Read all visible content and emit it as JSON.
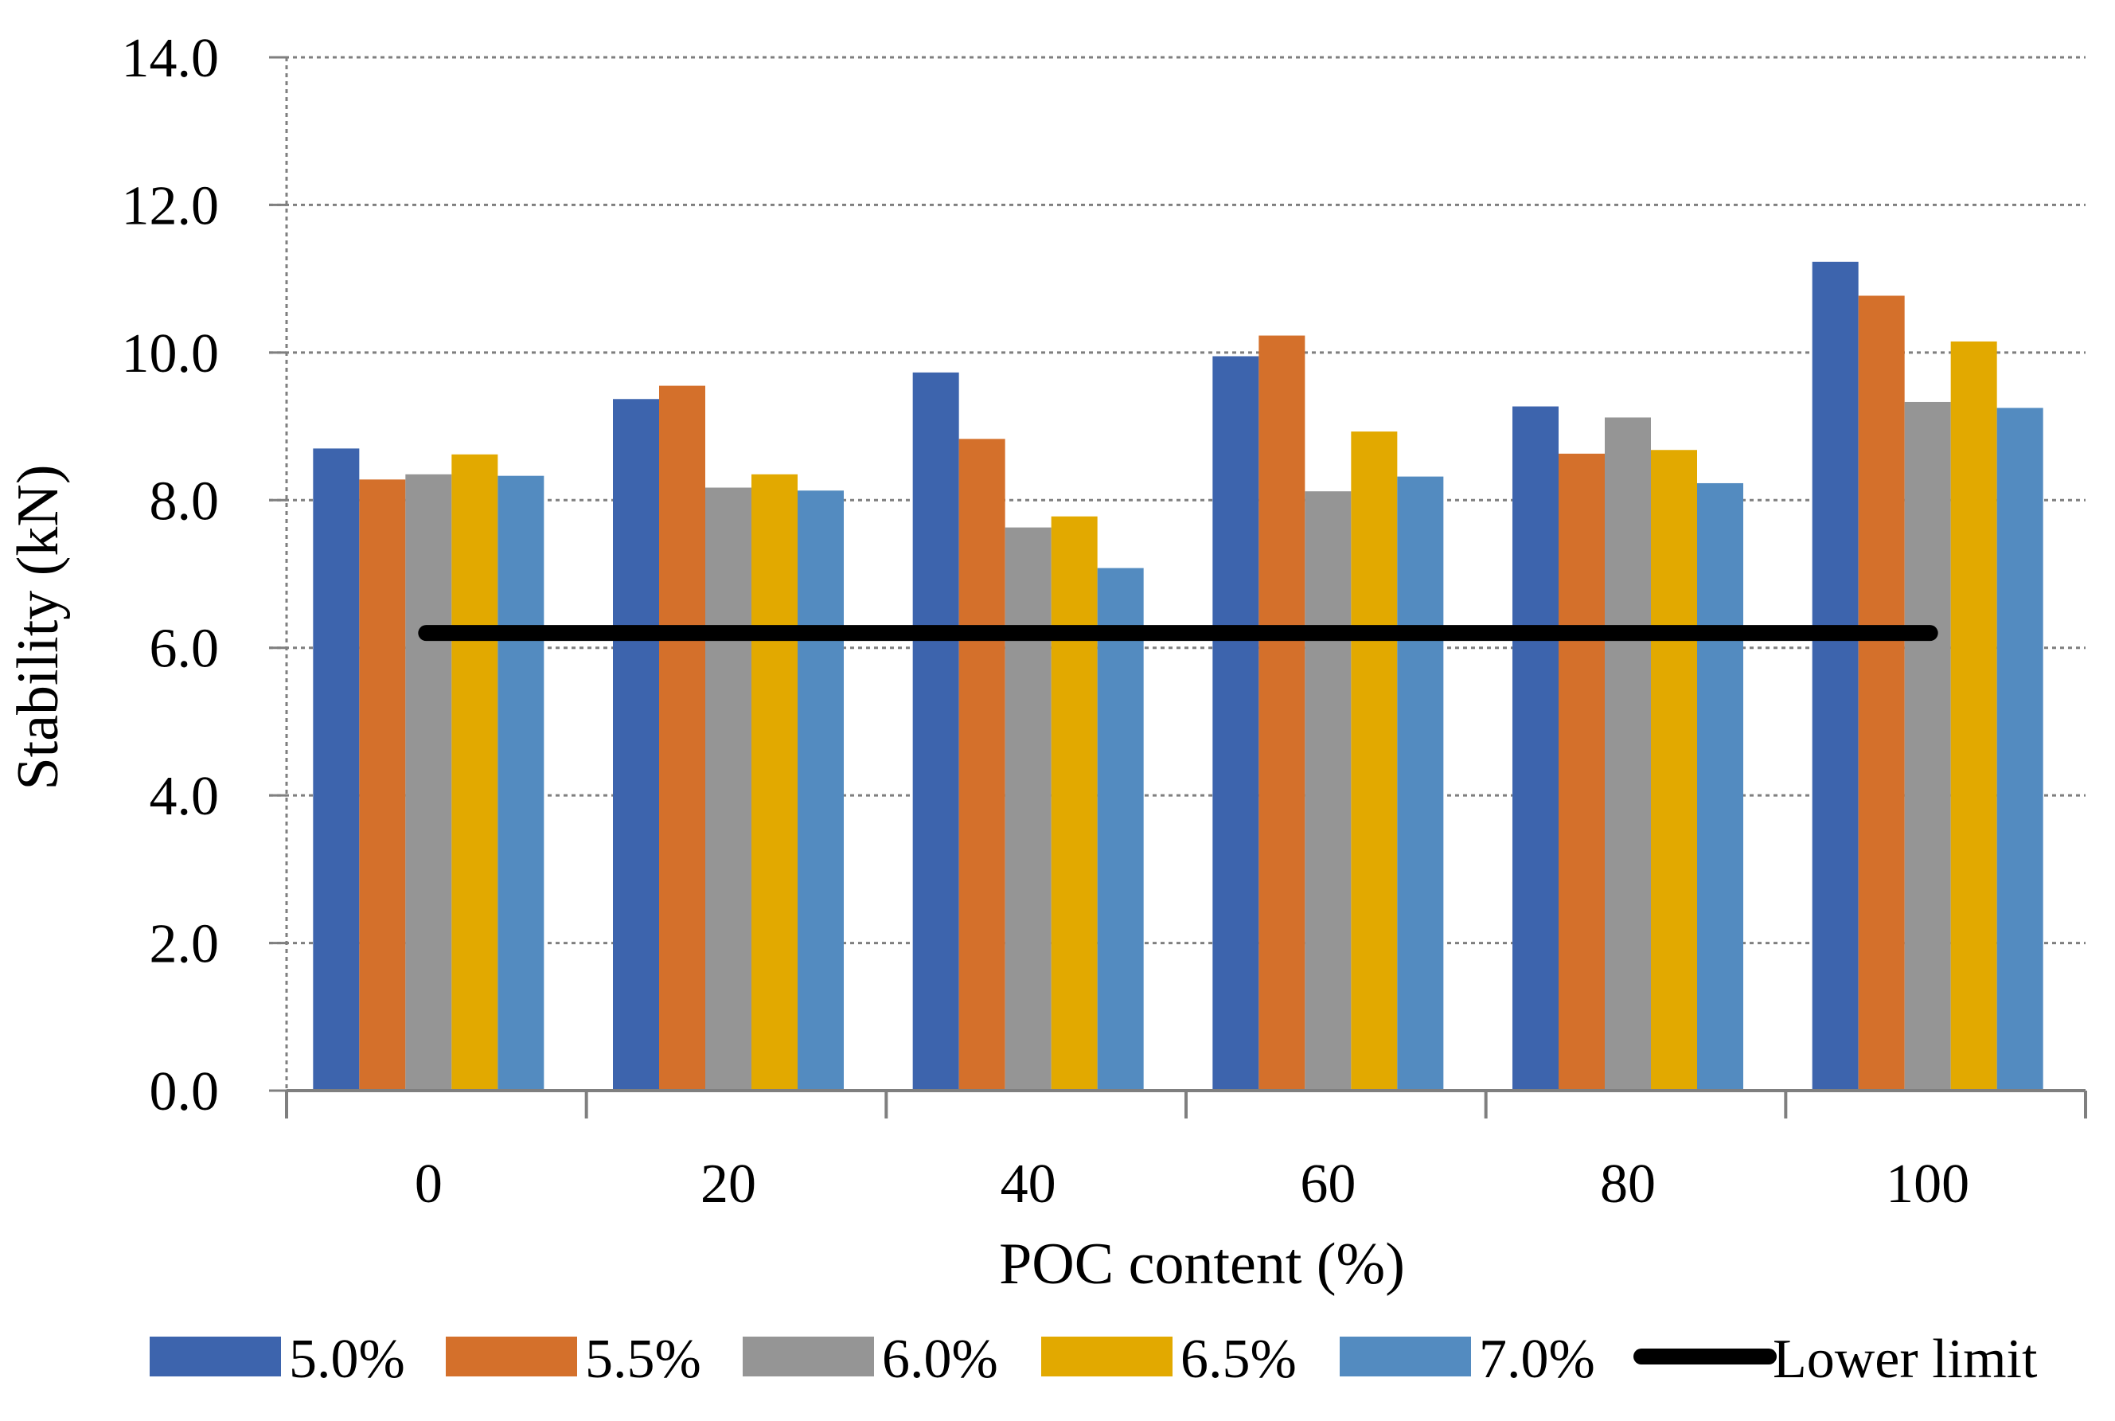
{
  "chart_data": {
    "type": "bar",
    "title": "",
    "xlabel": "POC content (%)",
    "ylabel": "Stability (kN)",
    "categories": [
      "0",
      "20",
      "40",
      "60",
      "80",
      "100"
    ],
    "ylim": [
      0,
      14
    ],
    "yticks": [
      "0.0",
      "2.0",
      "4.0",
      "6.0",
      "8.0",
      "10.0",
      "12.0",
      "14.0"
    ],
    "ytick_values": [
      0,
      2,
      4,
      6,
      8,
      10,
      12,
      14
    ],
    "grid": true,
    "legend_position": "bottom",
    "series": [
      {
        "name": "5.0%",
        "color": "#3d64ad",
        "values": [
          8.7,
          9.37,
          9.73,
          9.95,
          9.27,
          11.23
        ]
      },
      {
        "name": "5.5%",
        "color": "#d4702b",
        "values": [
          8.28,
          9.55,
          8.83,
          10.23,
          8.63,
          10.77
        ]
      },
      {
        "name": "6.0%",
        "color": "#959595",
        "values": [
          8.35,
          8.17,
          7.63,
          8.12,
          9.12,
          9.33
        ]
      },
      {
        "name": "6.5%",
        "color": "#e2a900",
        "values": [
          8.62,
          8.35,
          7.78,
          8.93,
          8.68,
          10.15
        ]
      },
      {
        "name": "7.0%",
        "color": "#538bc0",
        "values": [
          8.33,
          8.13,
          7.08,
          8.32,
          8.23,
          9.25
        ]
      }
    ],
    "reference_line": {
      "name": "Lower limit",
      "value": 6.2,
      "color": "#000000"
    }
  }
}
